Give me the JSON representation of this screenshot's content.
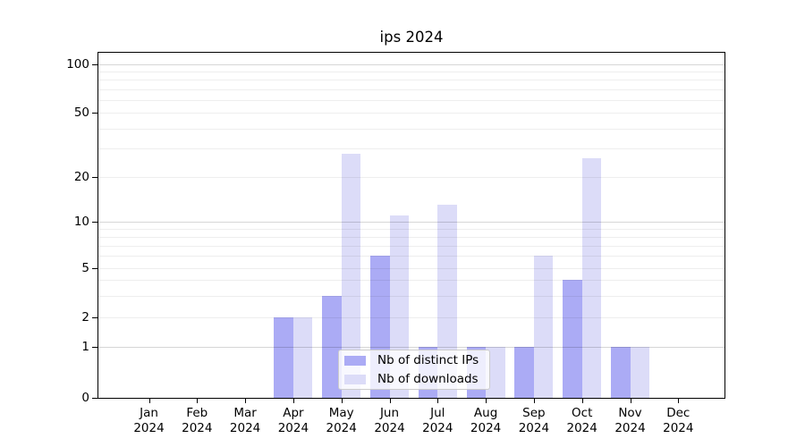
{
  "chart_data": {
    "type": "bar",
    "title": "ips 2024",
    "months": [
      "Jan",
      "Feb",
      "Mar",
      "Apr",
      "May",
      "Jun",
      "Jul",
      "Aug",
      "Sep",
      "Oct",
      "Nov",
      "Dec"
    ],
    "year_label": "2024",
    "series": [
      {
        "name": "Nb of distinct IPs",
        "color": "#ababf5",
        "values": [
          0,
          0,
          0,
          2,
          3,
          6,
          1,
          1,
          1,
          4,
          1,
          0
        ]
      },
      {
        "name": "Nb of downloads",
        "color": "#dcdcf8",
        "values": [
          0,
          0,
          0,
          2,
          28,
          11,
          13,
          1,
          6,
          26,
          1,
          0
        ]
      }
    ],
    "y_ticks": [
      0,
      1,
      2,
      5,
      10,
      20,
      50,
      100
    ],
    "y_major_gridlines": [
      1,
      10,
      100
    ],
    "y_minor_gridlines": [
      2,
      3,
      4,
      5,
      6,
      7,
      8,
      9,
      20,
      30,
      40,
      50,
      60,
      70,
      80,
      90
    ],
    "yscale": "log-like (linear 0-1, log above)",
    "ylim": [
      0,
      130
    ],
    "grid": true,
    "legend_position": "lower center",
    "axis_color": "#000000",
    "background_color": "#ffffff",
    "gridline_major_color": "#d2d2d2",
    "gridline_minor_color": "#ededed"
  }
}
